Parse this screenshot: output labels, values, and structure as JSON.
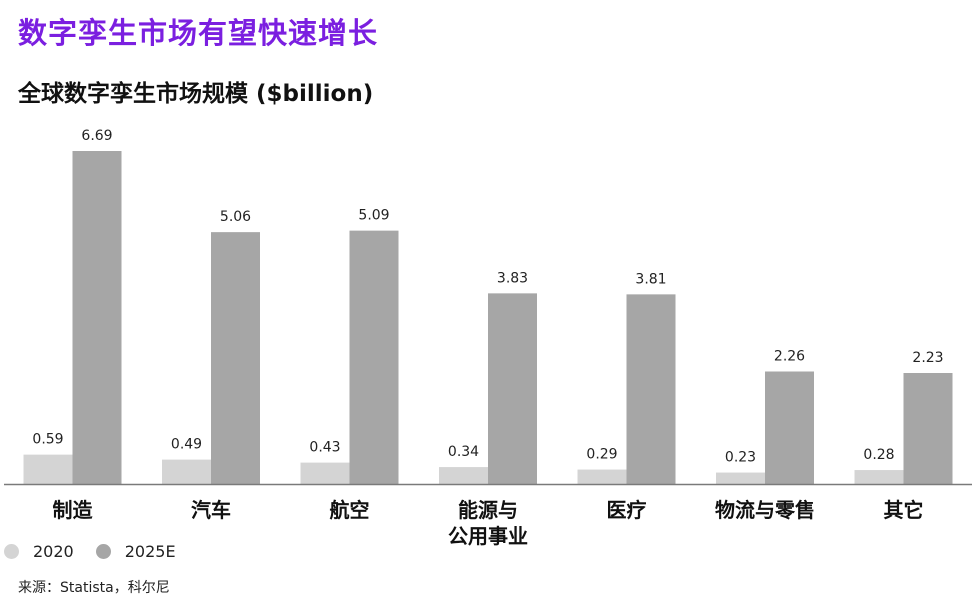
{
  "headline": "数字孪生市场有望快速增长",
  "chart_data": {
    "type": "bar",
    "title": "全球数字孪生市场规模 ($billion)",
    "categories": [
      "制造",
      "汽车",
      "航空",
      "能源与\n公用事业",
      "医疗",
      "物流与零售",
      "其它"
    ],
    "series": [
      {
        "name": "2020",
        "color": "#d4d4d4",
        "values": [
          0.59,
          0.49,
          0.43,
          0.34,
          0.29,
          0.23,
          0.28
        ]
      },
      {
        "name": "2025E",
        "color": "#a6a6a6",
        "values": [
          6.69,
          5.06,
          5.09,
          3.83,
          3.81,
          2.26,
          2.23
        ]
      }
    ],
    "ylim": [
      0,
      6.69
    ],
    "grid": false,
    "legend": "bottom-left"
  },
  "source": "来源：Statista，科尔尼"
}
